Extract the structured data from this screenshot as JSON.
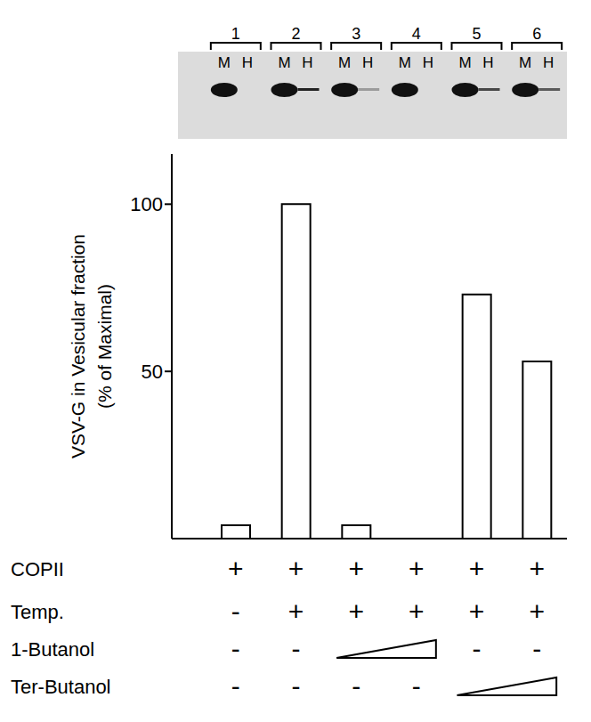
{
  "chart_data": {
    "type": "bar",
    "categories": [
      null,
      null,
      null,
      null,
      null,
      null
    ],
    "values": [
      4,
      100,
      4,
      0,
      73,
      53
    ],
    "color": "#ffffff",
    "ylim": [
      0,
      115
    ],
    "yticks": [
      50,
      100
    ],
    "ylabel": "VSV-G in Vesicular fraction (% of Maximal)",
    "tick_labels": "y"
  },
  "conditions": [
    {
      "label": "COPII",
      "values": [
        "+",
        "+",
        "+",
        "+",
        "+",
        "+"
      ]
    },
    {
      "label": "Temp.",
      "values": [
        "-",
        "+",
        "+",
        "+",
        "+",
        "+"
      ]
    },
    {
      "label": "1-Butanol",
      "values": [
        "-",
        "-",
        null,
        null,
        "-",
        "-"
      ]
    },
    {
      "label": "Ter-Butanol",
      "values": [
        "-",
        "-",
        "-",
        "-",
        null,
        null
      ]
    }
  ],
  "blot": {
    "lanes": [
      "1",
      "2",
      "3",
      "4",
      "5",
      "6"
    ],
    "fractions": [
      "M",
      "H"
    ]
  }
}
